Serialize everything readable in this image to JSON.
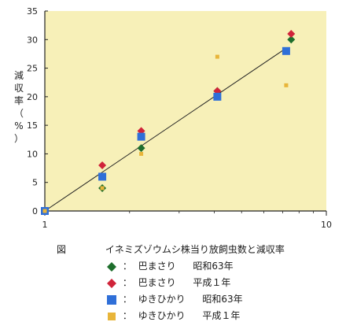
{
  "chart_data": {
    "type": "scatter",
    "title": "イネミズゾウムシ株当り放飼虫数と減収率",
    "figure_label": "図",
    "ylabel": "減収率（%）",
    "xlabel": "",
    "x_scale": "log",
    "xlim": [
      1,
      10
    ],
    "ylim": [
      0,
      35
    ],
    "x_ticks": [
      "1",
      "10"
    ],
    "y_ticks": [
      "0",
      "5",
      "10",
      "15",
      "20",
      "25",
      "30",
      "35"
    ],
    "grid": false,
    "legend_position": "bottom",
    "background_color": "#f7f0b8",
    "fit_line": {
      "x": [
        1,
        7.2
      ],
      "y": [
        0,
        28.5
      ]
    },
    "series": [
      {
        "name": "巴まさり",
        "season": "昭和63年",
        "marker": "diamond-icon",
        "color": "#1e6e2c",
        "x": [
          1,
          1.6,
          2.2,
          4.1,
          7.5
        ],
        "y": [
          0,
          4,
          11,
          21,
          30
        ]
      },
      {
        "name": "巴まさり",
        "season": "平成１年",
        "marker": "diamond-icon",
        "color": "#d0243a",
        "x": [
          1,
          1.6,
          2.2,
          4.1,
          7.5
        ],
        "y": [
          0,
          8,
          14,
          21,
          31
        ]
      },
      {
        "name": "ゆきひかり",
        "season": "昭和63年",
        "marker": "square-icon",
        "color": "#2f6fd8",
        "x": [
          1,
          1.6,
          2.2,
          4.1,
          7.2
        ],
        "y": [
          0,
          6,
          13,
          20,
          28
        ]
      },
      {
        "name": "ゆきひかり",
        "season": "平成１年",
        "marker": "square-icon",
        "color": "#e8b53a",
        "x": [
          1,
          1.6,
          2.2,
          4.1,
          7.2
        ],
        "y": [
          0,
          4,
          10,
          27,
          22
        ]
      }
    ]
  }
}
